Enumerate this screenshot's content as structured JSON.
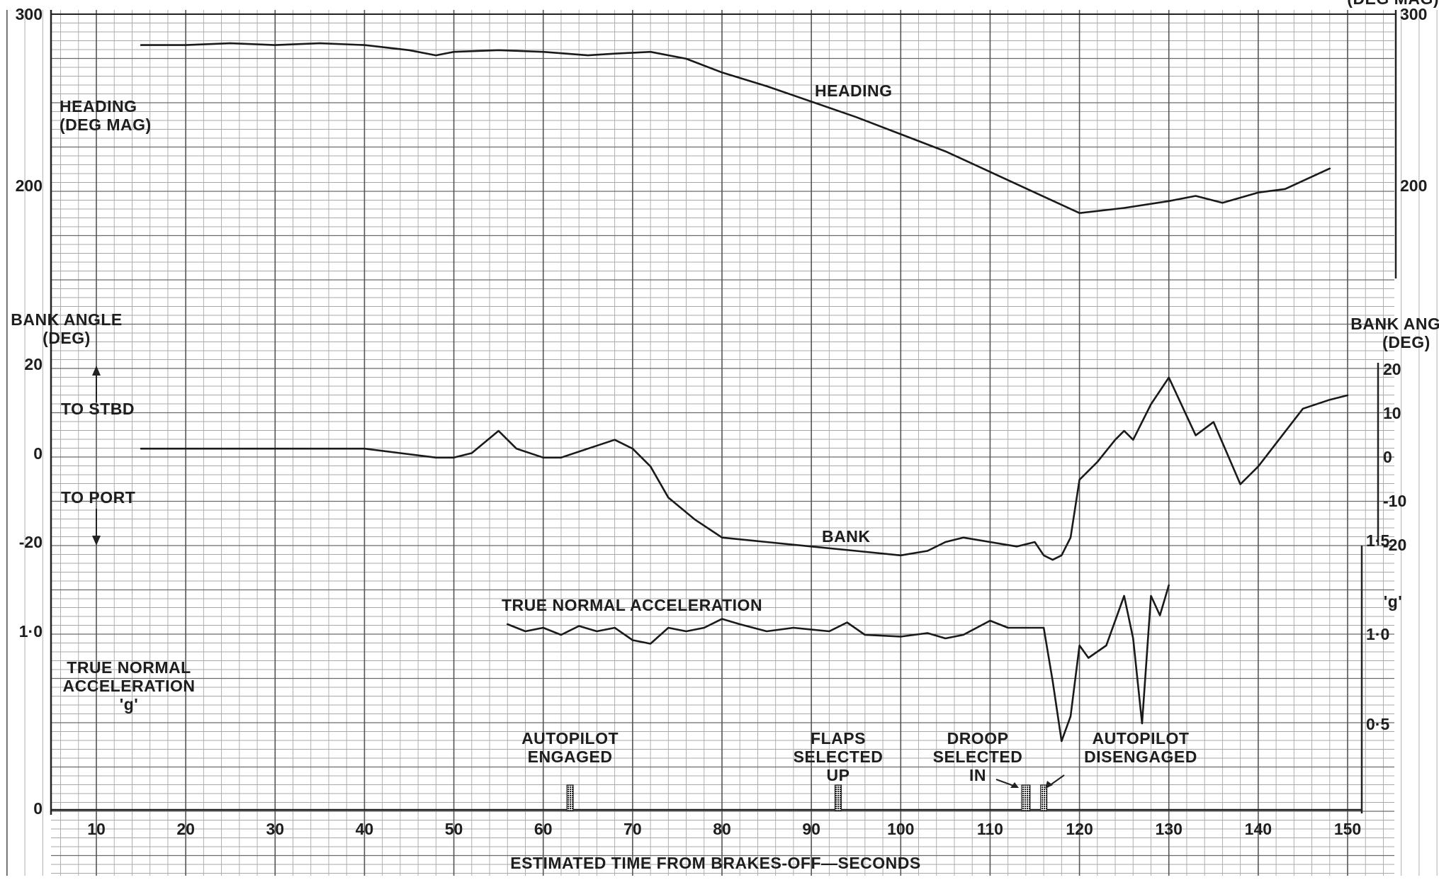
{
  "chart_data": {
    "type": "line",
    "x_axis": {
      "label": "ESTIMATED TIME FROM BRAKES-OFF—SECONDS",
      "range": [
        0,
        150
      ],
      "ticks": [
        10,
        20,
        30,
        40,
        50,
        60,
        70,
        80,
        90,
        100,
        110,
        120,
        130,
        140,
        150
      ]
    },
    "panels": [
      {
        "id": "heading",
        "left_label": [
          "HEADING",
          "(DEG MAG)"
        ],
        "right_label": [
          "(DEG MAG)"
        ],
        "left_ticks": [
          "300",
          "200"
        ],
        "right_ticks": [
          "300",
          "200"
        ],
        "y_range": [
          147,
          300
        ],
        "series": [
          {
            "name": "HEADING",
            "x": [
              15,
              20,
              25,
              30,
              35,
              40,
              45,
              48,
              50,
              55,
              60,
              65,
              68,
              72,
              76,
              80,
              85,
              90,
              95,
              100,
              105,
              110,
              115,
              120,
              125,
              130,
              133,
              136,
              140,
              143,
              148
            ],
            "y": [
              282,
              282,
              283,
              282,
              283,
              282,
              279,
              276,
              278,
              279,
              278,
              276,
              277,
              278,
              274,
              266,
              258,
              249,
              240,
              230,
              220,
              208,
              196,
              184,
              187,
              191,
              194,
              190,
              196,
              198,
              210
            ]
          }
        ]
      },
      {
        "id": "bank",
        "left_label": [
          "BANK ANGLE",
          "(DEG)"
        ],
        "right_label": [
          "BANK ANGLE",
          "(DEG)"
        ],
        "left_ticks": [
          "20",
          "0",
          "-20"
        ],
        "right_ticks": [
          "20",
          "10",
          "0",
          "-10",
          "-20"
        ],
        "y_range": [
          -20,
          20
        ],
        "direction_labels": [
          "TO STBD",
          "TO PORT"
        ],
        "series": [
          {
            "name": "BANK",
            "x": [
              15,
              20,
              25,
              30,
              35,
              40,
              44,
              48,
              50,
              52,
              55,
              57,
              60,
              62,
              65,
              68,
              70,
              72,
              74,
              77,
              80,
              85,
              90,
              95,
              100,
              103,
              105,
              107,
              110,
              113,
              115,
              116,
              117,
              118,
              119,
              120,
              122,
              124,
              125,
              126,
              128,
              130,
              133,
              135,
              138,
              140,
              145,
              148,
              150
            ],
            "y": [
              1,
              1,
              1,
              1,
              1,
              1,
              0,
              -1,
              -1,
              0,
              5,
              1,
              -1,
              -1,
              1,
              3,
              1,
              -3,
              -10,
              -15,
              -19,
              -20,
              -21,
              -22,
              -23,
              -22,
              -20,
              -19,
              -20,
              -21,
              -20,
              -23,
              -24,
              -23,
              -19,
              -6,
              -2,
              3,
              5,
              3,
              11,
              17,
              4,
              7,
              -7,
              -3,
              10,
              12,
              13
            ]
          }
        ]
      },
      {
        "id": "acceleration",
        "left_label": [
          "TRUE NORMAL",
          "ACCELERATION",
          "'g'"
        ],
        "right_label": [
          "'g'"
        ],
        "left_ticks": [
          "1·0",
          "0"
        ],
        "right_ticks": [
          "1·5",
          "1·0",
          "0·5"
        ],
        "y_range": [
          0,
          1.5
        ],
        "series": [
          {
            "name": "TRUE NORMAL ACCELERATION",
            "x": [
              56,
              58,
              60,
              62,
              64,
              66,
              68,
              70,
              72,
              74,
              76,
              78,
              80,
              82,
              85,
              88,
              92,
              94,
              96,
              100,
              103,
              105,
              107,
              110,
              112,
              114,
              116,
              117,
              118,
              119,
              120,
              121,
              123,
              125,
              126,
              127,
              128,
              129,
              130
            ],
            "y": [
              1.04,
              1.0,
              1.02,
              0.98,
              1.03,
              1.0,
              1.02,
              0.95,
              0.93,
              1.02,
              1.0,
              1.02,
              1.07,
              1.04,
              1.0,
              1.02,
              1.0,
              1.05,
              0.98,
              0.97,
              0.99,
              0.96,
              0.98,
              1.06,
              1.02,
              1.02,
              1.02,
              0.72,
              0.38,
              0.52,
              0.92,
              0.85,
              0.92,
              1.2,
              0.96,
              0.48,
              1.2,
              1.09,
              1.26
            ]
          }
        ]
      }
    ],
    "event_markers": [
      {
        "label": [
          "AUTOPILOT",
          "ENGAGED"
        ],
        "x": 63
      },
      {
        "label": [
          "FLAPS",
          "SELECTED",
          "UP"
        ],
        "x": 93
      },
      {
        "label": [
          "DROOP",
          "SELECTED",
          "IN"
        ],
        "x": 114
      },
      {
        "label": [
          "AUTOPILOT",
          "DISENGAGED"
        ],
        "x": 116
      }
    ],
    "grid": true
  }
}
